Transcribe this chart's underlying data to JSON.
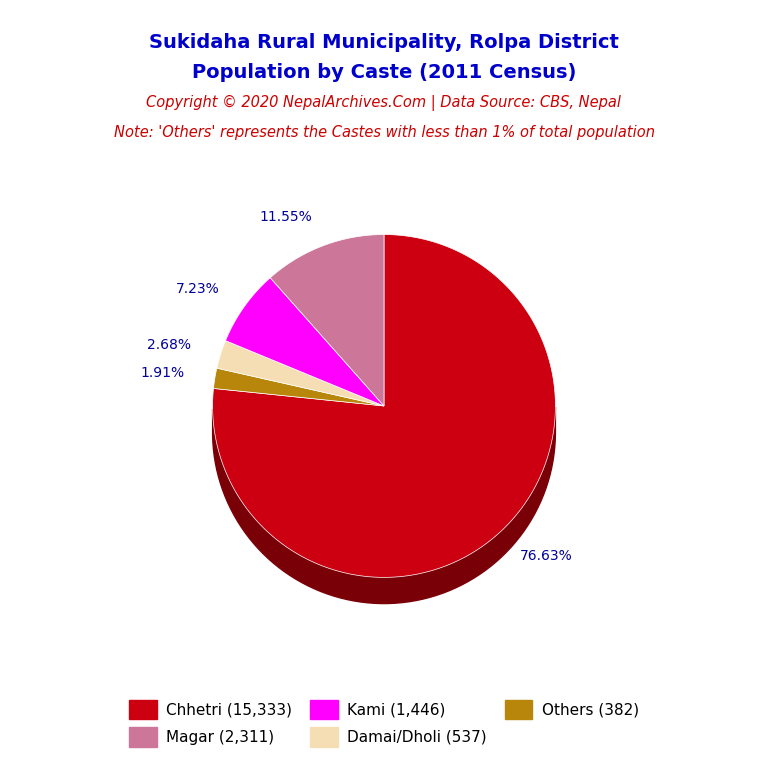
{
  "title_line1": "Sukidaha Rural Municipality, Rolpa District",
  "title_line2": "Population by Caste (2011 Census)",
  "title_color": "#0000cc",
  "copyright_text": "Copyright © 2020 NepalArchives.Com | Data Source: CBS, Nepal",
  "copyright_color": "#cc0000",
  "note_text": "Note: 'Others' represents the Castes with less than 1% of total population",
  "note_color": "#cc0000",
  "labels": [
    "Chhetri",
    "Others",
    "Damai/Dholi",
    "Kami",
    "Magar"
  ],
  "values": [
    15333,
    382,
    537,
    1446,
    2311
  ],
  "percentages": [
    76.63,
    1.91,
    2.68,
    7.23,
    11.55
  ],
  "colors": [
    "#cc0011",
    "#b8860b",
    "#f5deb3",
    "#ff00ff",
    "#cc7799"
  ],
  "shadow_colors": [
    "#7a0008",
    "#8b6400",
    "#c8a87a",
    "#aa00aa",
    "#885566"
  ],
  "legend_labels_row1": [
    "Chhetri (15,333)",
    "Magar (2,311)",
    "Kami (1,446)"
  ],
  "legend_labels_row2": [
    "Damai/Dholi (537)",
    "Others (382)"
  ],
  "legend_colors_row1": [
    "#cc0011",
    "#cc7799",
    "#ff00ff"
  ],
  "legend_colors_row2": [
    "#f5deb3",
    "#b8860b"
  ]
}
